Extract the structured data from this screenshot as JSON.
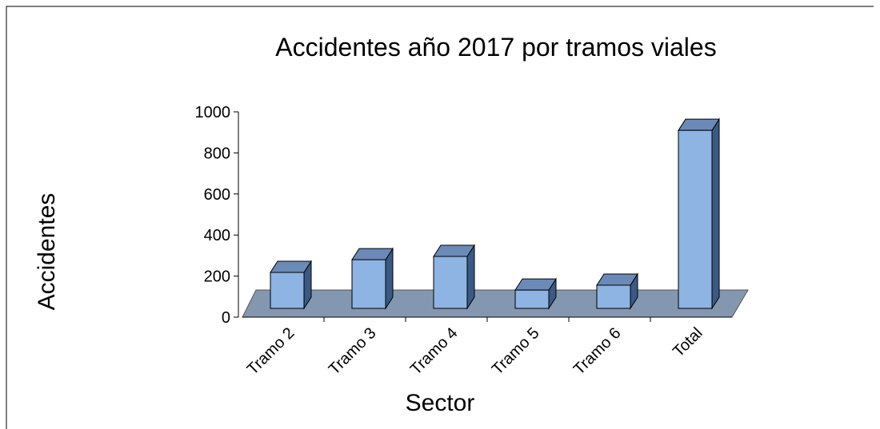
{
  "chart_data": {
    "type": "bar3d",
    "title": "Accidentes año 2017 por tramos viales",
    "x_label": "Sector",
    "y_label": "Accidentes",
    "categories": [
      "Tramo 2",
      "Tramo 3",
      "Tramo 4",
      "Tramo 5",
      "Tramo 6",
      "Total"
    ],
    "values": [
      175,
      237,
      253,
      89,
      113,
      867
    ],
    "color": "#8db4e2",
    "ylim": [
      0,
      1000
    ],
    "yticks": [
      0,
      200,
      400,
      600,
      800,
      1000
    ]
  }
}
